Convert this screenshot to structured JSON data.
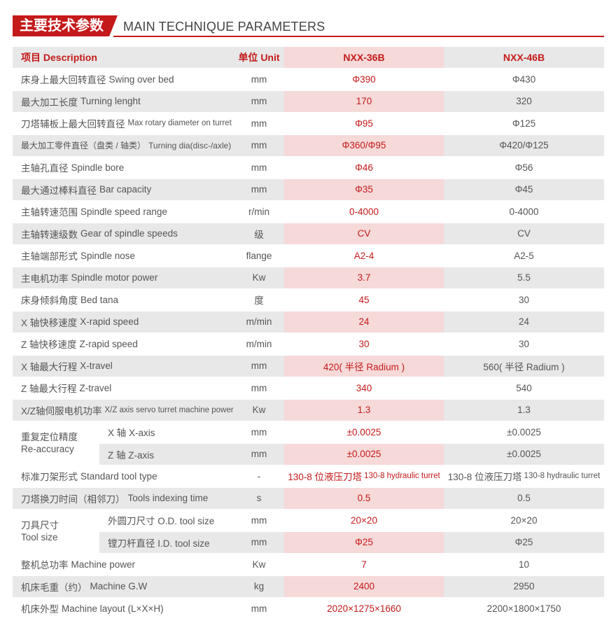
{
  "header": {
    "title_cn": "主要技术参数",
    "title_en": "MAIN TECHNIQUE PARAMETERS"
  },
  "table": {
    "columns": {
      "desc": "项目 Description",
      "unit": "单位 Unit",
      "model_a": "NXX-36B",
      "model_b": "NXX-46B"
    },
    "rows": [
      {
        "cn": "床身上最大回转直径",
        "en": "Swing over bed",
        "unit": "mm",
        "a": "Φ390",
        "b": "Φ430"
      },
      {
        "cn": "最大加工长度",
        "en": "Turning lenght",
        "unit": "mm",
        "a": "170",
        "b": "320"
      },
      {
        "cn": "刀塔辅板上最大回转直径",
        "en": "Max rotary diameter on turret",
        "unit": "mm",
        "a": "Φ95",
        "b": "Φ125"
      },
      {
        "cn": "最大加工零件直径（盘类 / 轴类）",
        "en": "Turning dia(disc-/axle)",
        "unit": "mm",
        "a": "Φ360/Φ95",
        "b": "Φ420/Φ125"
      },
      {
        "cn": "主轴孔直径",
        "en": "Spindle bore",
        "unit": "mm",
        "a": "Φ46",
        "b": "Φ56"
      },
      {
        "cn": "最大通过棒料直径",
        "en": "Bar capacity",
        "unit": "mm",
        "a": "Φ35",
        "b": "Φ45"
      },
      {
        "cn": "主轴转速范围",
        "en": "Spindle speed range",
        "unit": "r/min",
        "a": "0-4000",
        "b": "0-4000"
      },
      {
        "cn": "主轴转速级数",
        "en": "Gear of spindle speeds",
        "unit": "级",
        "a": "CV",
        "b": "CV"
      },
      {
        "cn": "主轴端部形式",
        "en": "Spindle nose",
        "unit": "flange",
        "a": "A2-4",
        "b": "A2-5"
      },
      {
        "cn": "主电机功率",
        "en": "Spindle motor power",
        "unit": "Kw",
        "a": "3.7",
        "b": "5.5"
      },
      {
        "cn": "床身倾斜角度",
        "en": "Bed tana",
        "unit": "度",
        "a": "45",
        "b": "30"
      },
      {
        "cn": "X 轴快移速度",
        "en": "X-rapid speed",
        "unit": "m/min",
        "a": "24",
        "b": "24"
      },
      {
        "cn": "Z 轴快移速度",
        "en": "Z-rapid speed",
        "unit": "m/min",
        "a": "30",
        "b": "30"
      },
      {
        "cn": "X 轴最大行程",
        "en": "X-travel",
        "unit": "mm",
        "a": "420( 半径 Radium )",
        "b": "560( 半径 Radium )"
      },
      {
        "cn": "Z 轴最大行程",
        "en": "Z-travel",
        "unit": "mm",
        "a": "340",
        "b": "540"
      },
      {
        "cn": "X/Z轴伺服电机功率",
        "en": "X/Z axis servo turret machine power",
        "unit": "Kw",
        "a": "1.3",
        "b": "1.3"
      }
    ],
    "accuracy_group": {
      "label_cn": "重复定位精度",
      "label_en": "Re-accuracy",
      "rows": [
        {
          "sub": "X 轴 X-axis",
          "unit": "mm",
          "a": "±0.0025",
          "b": "±0.0025"
        },
        {
          "sub": "Z 轴 Z-axis",
          "unit": "mm",
          "a": "±0.0025",
          "b": "±0.0025"
        }
      ]
    },
    "rows2": [
      {
        "cn": "标准刀架形式",
        "en": "Standard tool type",
        "unit": "-",
        "a": "130-8 位液压刀塔",
        "a_small": "130-8 hydraulic turret",
        "b": "130-8 位液压刀塔",
        "b_small": "130-8 hydraulic turret"
      },
      {
        "cn": "刀塔换刀时间（相邻刀）",
        "en": "Tools indexing time",
        "unit": "s",
        "a": "0.5",
        "b": "0.5"
      }
    ],
    "toolsize_group": {
      "label_cn": "刀具尺寸",
      "label_en": "Tool size",
      "rows": [
        {
          "sub": "外圆刀尺寸 O.D. tool size",
          "unit": "mm",
          "a": "20×20",
          "b": "20×20"
        },
        {
          "sub": "镗刀杆直径 I.D. tool size",
          "unit": "mm",
          "a": "Φ25",
          "b": "Φ25"
        }
      ]
    },
    "rows3": [
      {
        "cn": "整机总功率",
        "en": "Machine power",
        "unit": "Kw",
        "a": "7",
        "b": "10"
      },
      {
        "cn": "机床毛重（约）",
        "en": "Machine G.W",
        "unit": "kg",
        "a": "2400",
        "b": "2950"
      },
      {
        "cn": "机床外型",
        "en": "Machine layout (L×X×H)",
        "unit": "mm",
        "a": "2020×1275×1660",
        "b": "2200×1800×1750"
      }
    ]
  }
}
